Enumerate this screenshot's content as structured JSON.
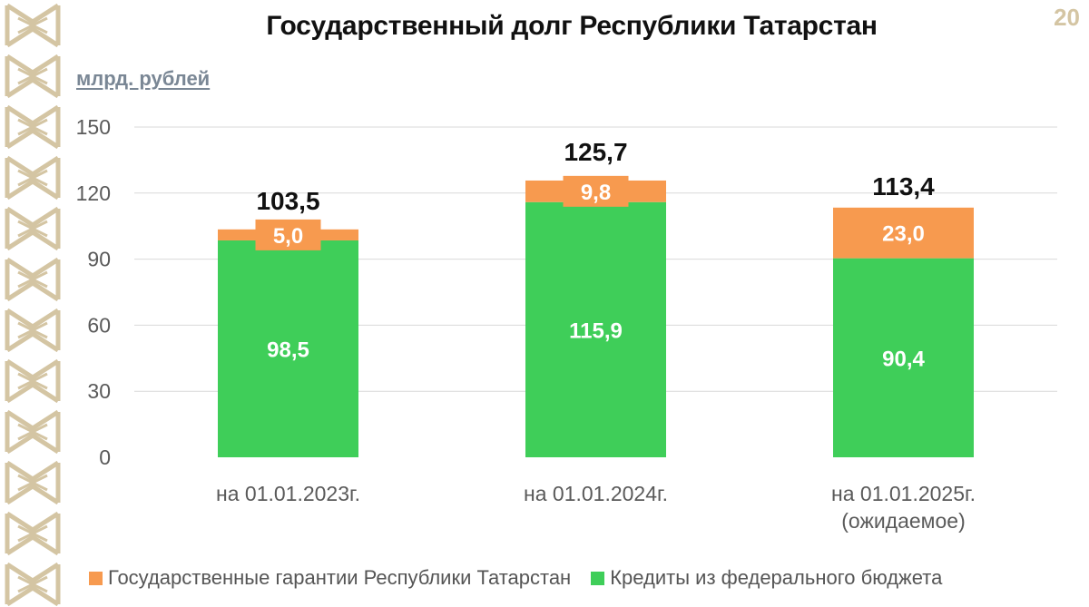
{
  "page": {
    "number": "20",
    "title": "Государственный долг Республики Татарстан",
    "unit": "млрд. рублей"
  },
  "colors": {
    "green": "#3fce59",
    "orange": "#f79a4f",
    "grid": "#d9d9d9",
    "axis_text": "#5a5a5a",
    "ornament": "#d4c5a3"
  },
  "chart_data": {
    "type": "bar",
    "stacked": true,
    "title": "Государственный долг Республики Татарстан",
    "ylabel": "млрд. рублей",
    "xlabel": "",
    "ylim": [
      0,
      150
    ],
    "yticks": [
      0,
      30,
      60,
      90,
      120,
      150
    ],
    "grid": true,
    "legend_position": "bottom",
    "categories": [
      [
        "на 01.01.2023г."
      ],
      [
        "на 01.01.2024г."
      ],
      [
        "на 01.01.2025г.",
        "(ожидаемое)"
      ]
    ],
    "series": [
      {
        "name": "Кредиты из федерального бюджета",
        "color": "#3fce59",
        "values": [
          98.5,
          115.9,
          90.4
        ],
        "labels": [
          "98,5",
          "115,9",
          "90,4"
        ]
      },
      {
        "name": "Государственные гарантии Республики Татарстан",
        "color": "#f79a4f",
        "values": [
          5.0,
          9.8,
          23.0
        ],
        "labels": [
          "5,0",
          "9,8",
          "23,0"
        ]
      }
    ],
    "totals": [
      103.5,
      125.7,
      113.4
    ],
    "total_labels": [
      "103,5",
      "125,7",
      "113,4"
    ]
  },
  "legend": [
    {
      "label": "Государственные гарантии Республики Татарстан",
      "color": "#f79a4f"
    },
    {
      "label": "Кредиты из федерального бюджета",
      "color": "#3fce59"
    }
  ]
}
